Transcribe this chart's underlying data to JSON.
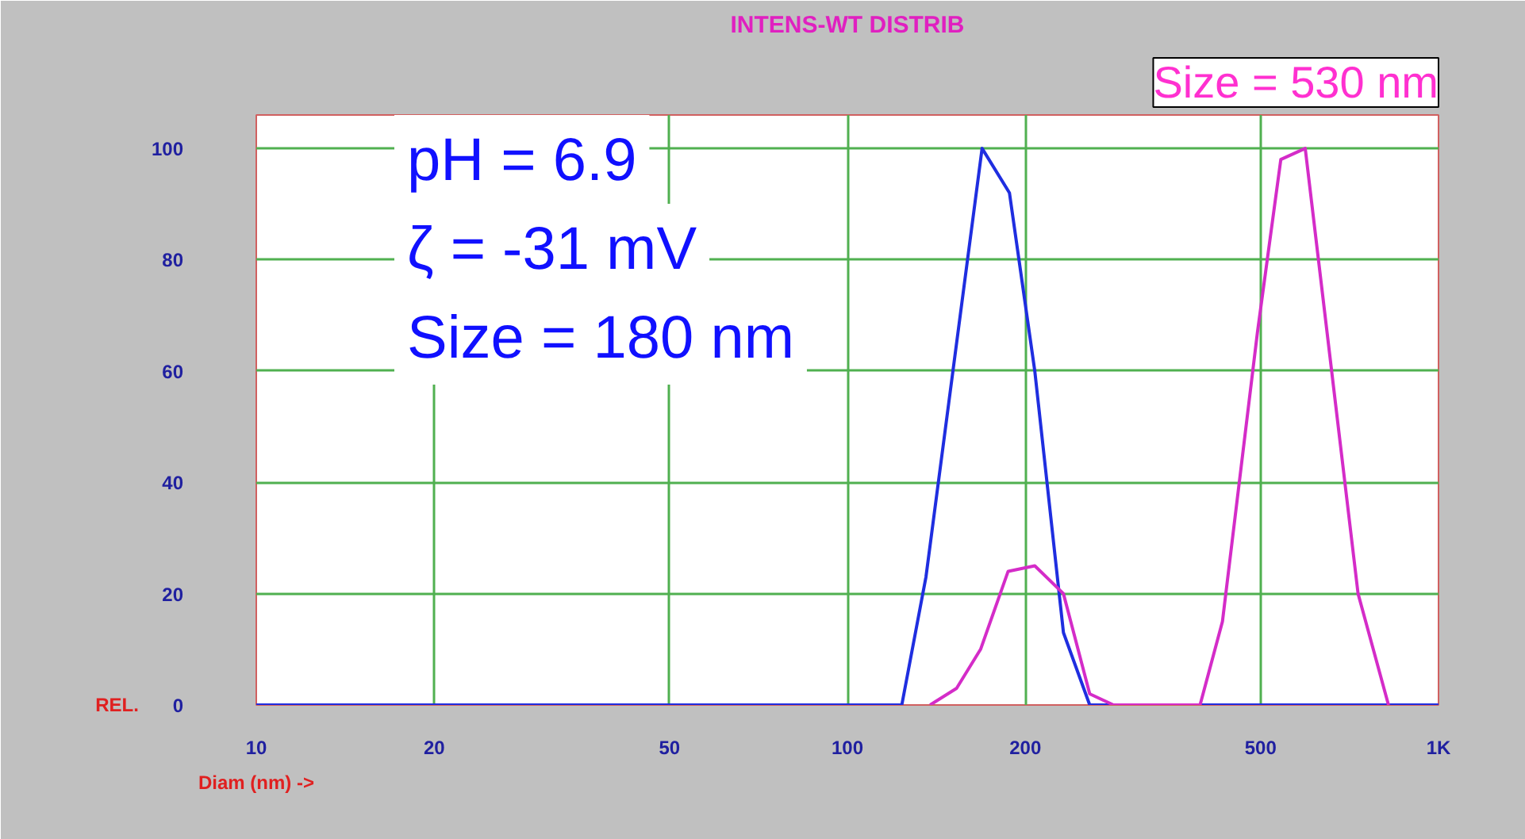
{
  "chart_data": {
    "type": "line",
    "title": "INTENS-WT DISTRIB",
    "xlabel": "Diam (nm) ->",
    "ylabel": "REL.",
    "log": "x",
    "x": [
      10,
      123.6,
      135.8,
      169,
      188,
      207.5,
      232,
      257,
      1000
    ],
    "series": [
      {
        "color": "#1f2ee0",
        "values": [
          0,
          0,
          23,
          100,
          92,
          60,
          13,
          0,
          0
        ]
      },
      {
        "color": "#d42cc8",
        "x": [
          138,
          153,
          168,
          187,
          207.5,
          232,
          257,
          282,
          395,
          431,
          494,
          541,
          595,
          731,
          823
        ],
        "values": [
          0,
          3,
          10,
          24,
          25,
          20,
          2,
          0,
          0,
          15,
          67,
          98,
          100,
          20,
          0
        ]
      }
    ],
    "xlim": [
      10,
      1000
    ],
    "ylim": [
      0,
      106
    ],
    "xticks": [
      10,
      20,
      50,
      100,
      200,
      500,
      {
        "value": 1000,
        "label": "1K"
      }
    ],
    "yticks": [
      0,
      20,
      40,
      60,
      80,
      100
    ],
    "grid": true,
    "marker": "none",
    "line_style": "solid",
    "annotations": [
      "pH = 6.9",
      "ζ = -31 mV",
      "Size = 180 nm",
      "Size = 530 nm"
    ]
  }
}
